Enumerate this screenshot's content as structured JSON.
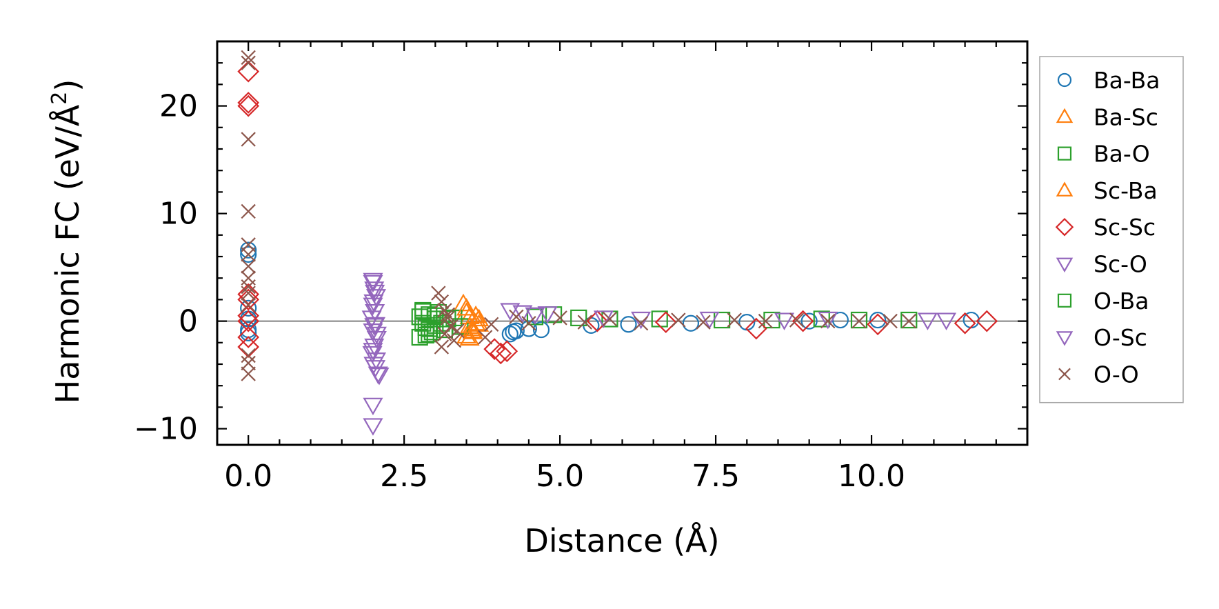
{
  "chart_data": {
    "type": "scatter",
    "title": "",
    "xlabel": "Distance (Å)",
    "ylabel": "Harmonic FC (eV/Å²)",
    "ylabel_parts": {
      "main": "Harmonic FC (eV/Å",
      "sup": "2",
      "close": ")"
    },
    "xlim": [
      -0.5,
      12.5
    ],
    "ylim": [
      -11.5,
      26.0
    ],
    "xticks": [
      0.0,
      2.5,
      5.0,
      7.5,
      10.0
    ],
    "xtick_labels": [
      "0.0",
      "2.5",
      "5.0",
      "7.5",
      "10.0"
    ],
    "yticks": [
      -10,
      0,
      10,
      20
    ],
    "ytick_labels": [
      "−10",
      "0",
      "10",
      "20"
    ],
    "x_minor_step": 0.5,
    "y_minor_step": 2,
    "zero_line": true,
    "grid": false,
    "legend_position": "outside-right",
    "series": [
      {
        "name": "Ba-Ba",
        "marker": "circle",
        "color": "#1f77b4",
        "x": [
          0,
          0,
          0,
          0,
          0,
          0,
          4.2,
          4.25,
          4.3,
          4.5,
          4.7,
          5.5,
          6.1,
          7.1,
          8.0,
          9.0,
          9.5,
          10.1,
          11.6
        ],
        "y": [
          6.6,
          6.2,
          1.2,
          0.2,
          -0.8,
          -1.1,
          -1.2,
          -1.0,
          -0.9,
          -0.7,
          -0.8,
          -0.4,
          -0.3,
          -0.2,
          -0.1,
          0.0,
          0.1,
          0.1,
          0.1
        ]
      },
      {
        "name": "Ba-Sc",
        "marker": "triangle-up",
        "color": "#ff7f0e",
        "x": [
          3.45,
          3.5,
          3.55,
          3.6,
          3.5,
          3.65,
          3.55,
          3.6,
          3.7
        ],
        "y": [
          1.6,
          0.8,
          -0.5,
          -1.0,
          -1.4,
          -0.2,
          0.4,
          -0.9,
          0.2
        ]
      },
      {
        "name": "Ba-O",
        "marker": "square",
        "color": "#2ca02c",
        "x": [
          2.75,
          2.8,
          2.85,
          2.9,
          2.95,
          3.0,
          2.75,
          2.8,
          2.9,
          3.0,
          3.05,
          3.15,
          3.3,
          3.4,
          4.6,
          4.9,
          5.3,
          5.8,
          6.6,
          7.6,
          8.4,
          9.2,
          9.8,
          10.6
        ],
        "y": [
          0.4,
          -0.2,
          -0.6,
          0.6,
          -1.0,
          0.2,
          -1.5,
          1.0,
          -1.2,
          -0.4,
          0.8,
          -0.8,
          0.3,
          -0.5,
          0.4,
          0.6,
          0.3,
          0.2,
          0.2,
          0.1,
          0.1,
          0.2,
          0.1,
          0.1
        ]
      },
      {
        "name": "Sc-Ba",
        "marker": "triangle-up",
        "color": "#ff7f0e",
        "x": [
          3.5,
          3.6,
          3.65,
          3.55,
          3.7
        ],
        "y": [
          1.2,
          -0.7,
          0.5,
          -1.6,
          -0.3
        ]
      },
      {
        "name": "Sc-Sc",
        "marker": "diamond",
        "color": "#d62728",
        "x": [
          0,
          0,
          0,
          0,
          0,
          0,
          0,
          0,
          0,
          3.95,
          4.05,
          4.15,
          5.6,
          6.7,
          8.15,
          8.9,
          10.1,
          11.5,
          11.85
        ],
        "y": [
          23.2,
          20.3,
          20.0,
          2.5,
          2.0,
          0.5,
          0.0,
          -1.5,
          -2.4,
          -2.6,
          -3.0,
          -2.8,
          0.0,
          -0.1,
          -0.7,
          0.0,
          -0.3,
          -0.2,
          0.0
        ]
      },
      {
        "name": "Sc-O",
        "marker": "triangle-down",
        "color": "#9467bd",
        "x": [
          2.0,
          2.02,
          2.05,
          2.0,
          2.03,
          1.98,
          2.04,
          2.0,
          2.06,
          2.02,
          1.99,
          2.05,
          2.01,
          2.08,
          2.0,
          2.1,
          2.0,
          2.02,
          4.2,
          4.4,
          4.6,
          4.8,
          5.7,
          6.3,
          7.4,
          8.6,
          9.3,
          10.9,
          11.2
        ],
        "y": [
          3.8,
          3.0,
          2.3,
          1.5,
          0.9,
          0.3,
          -0.3,
          -0.9,
          -1.6,
          -2.3,
          -3.0,
          -3.6,
          -4.0,
          -4.9,
          -7.8,
          -5.0,
          -9.7,
          -0.4,
          1.0,
          0.8,
          0.6,
          0.7,
          0.3,
          0.2,
          0.2,
          0.1,
          0.2,
          0.1,
          0.1
        ]
      },
      {
        "name": "O-Ba",
        "marker": "square",
        "color": "#2ca02c",
        "x": [
          2.8,
          2.9,
          3.0,
          2.85,
          3.1,
          3.2
        ],
        "y": [
          0.9,
          -0.7,
          0.5,
          -1.3,
          -0.2,
          0.2
        ]
      },
      {
        "name": "O-Sc",
        "marker": "triangle-down",
        "color": "#9467bd",
        "x": [
          2.0,
          2.03,
          2.01,
          2.06,
          2.0,
          2.04
        ],
        "y": [
          3.6,
          2.7,
          1.8,
          -1.2,
          -2.7,
          -4.3
        ]
      },
      {
        "name": "O-O",
        "marker": "x",
        "color": "#8c564b",
        "x": [
          0,
          0,
          0,
          0,
          0,
          0,
          0,
          0,
          0,
          0,
          0,
          0,
          0,
          0,
          3.05,
          3.1,
          3.15,
          3.2,
          3.25,
          3.15,
          3.3,
          3.1,
          3.2,
          3.35,
          3.8,
          3.9,
          4.3,
          4.5,
          5.0,
          5.4,
          5.8,
          6.3,
          6.9,
          7.3,
          7.8,
          8.3,
          8.8,
          9.3,
          9.8,
          10.3,
          10.6
        ],
        "y": [
          24.5,
          24.0,
          16.9,
          10.2,
          7.1,
          6.2,
          5.1,
          4.0,
          3.2,
          2.6,
          1.5,
          -3.2,
          -3.9,
          -4.9,
          2.6,
          1.8,
          1.0,
          0.3,
          -0.5,
          -1.2,
          -1.8,
          -2.4,
          0.6,
          -0.9,
          -1.5,
          -0.3,
          0.4,
          -0.2,
          0.3,
          -0.1,
          0.2,
          -0.2,
          0.1,
          -0.1,
          0.1,
          0.0,
          0.1,
          0.0,
          0.0,
          0.0,
          0.0
        ]
      }
    ]
  }
}
